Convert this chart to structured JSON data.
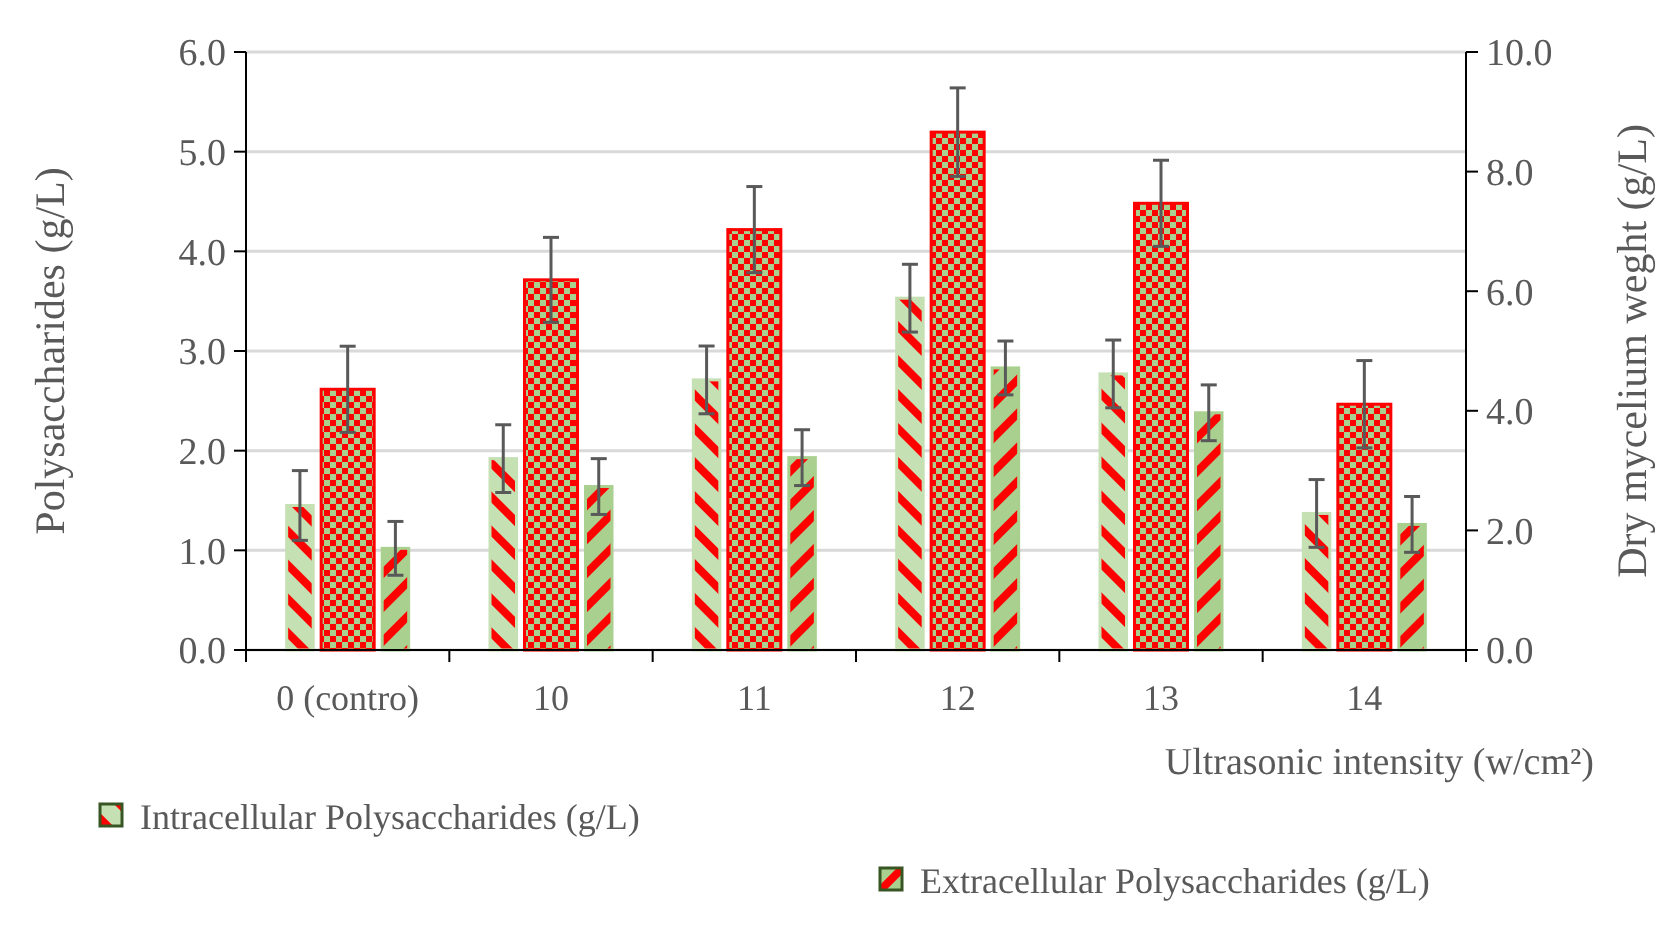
{
  "chart_data": {
    "type": "bar",
    "xlabel": "Ultrasonic intensity (w/cm²)",
    "ylabel": "Polysaccharides (g/L)",
    "y2label": "Dry mycelium weght (g/L)",
    "categories": [
      "0 (contro)",
      "10",
      "11",
      "12",
      "13",
      "14"
    ],
    "series": [
      {
        "name": "Intracellular Polysaccharides (g/L)",
        "color": "#c5e0b3",
        "values": [
          1.45,
          1.92,
          2.71,
          3.53,
          2.77,
          1.37
        ],
        "errors": [
          0.35,
          0.34,
          0.34,
          0.34,
          0.34,
          0.34
        ]
      },
      {
        "color": "#ff0000",
        "axis": "y2",
        "values": [
          4.36,
          6.19,
          7.03,
          8.66,
          7.47,
          4.11
        ],
        "errors": [
          0.72,
          0.71,
          0.72,
          0.74,
          0.72,
          0.73
        ]
      },
      {
        "name": "Extracellular Polysaccharides (g/L)",
        "color": "#a9d08e",
        "values": [
          1.02,
          1.64,
          1.93,
          2.83,
          2.38,
          1.26
        ],
        "errors": [
          0.27,
          0.28,
          0.28,
          0.27,
          0.28,
          0.28
        ]
      }
    ],
    "ylim": [
      0,
      6
    ],
    "yticks": [
      {
        "value": 0,
        "label": "0.0"
      },
      {
        "value": 1,
        "label": "1.0"
      },
      {
        "value": 2,
        "label": "2.0"
      },
      {
        "value": 3,
        "label": "3.0"
      },
      {
        "value": 4,
        "label": "4.0"
      },
      {
        "value": 5,
        "label": "5.0"
      },
      {
        "value": 6,
        "label": "6.0"
      }
    ],
    "y2lim": [
      0,
      10
    ],
    "y2ticks": [
      {
        "value": 0,
        "label": "0.0"
      },
      {
        "value": 2,
        "label": "2.0"
      },
      {
        "value": 4,
        "label": "4.0"
      },
      {
        "value": 6,
        "label": "6.0"
      },
      {
        "value": 8,
        "label": "8.0"
      },
      {
        "value": 10,
        "label": "10.0"
      }
    ],
    "grid": "y",
    "legend": "bottom"
  }
}
